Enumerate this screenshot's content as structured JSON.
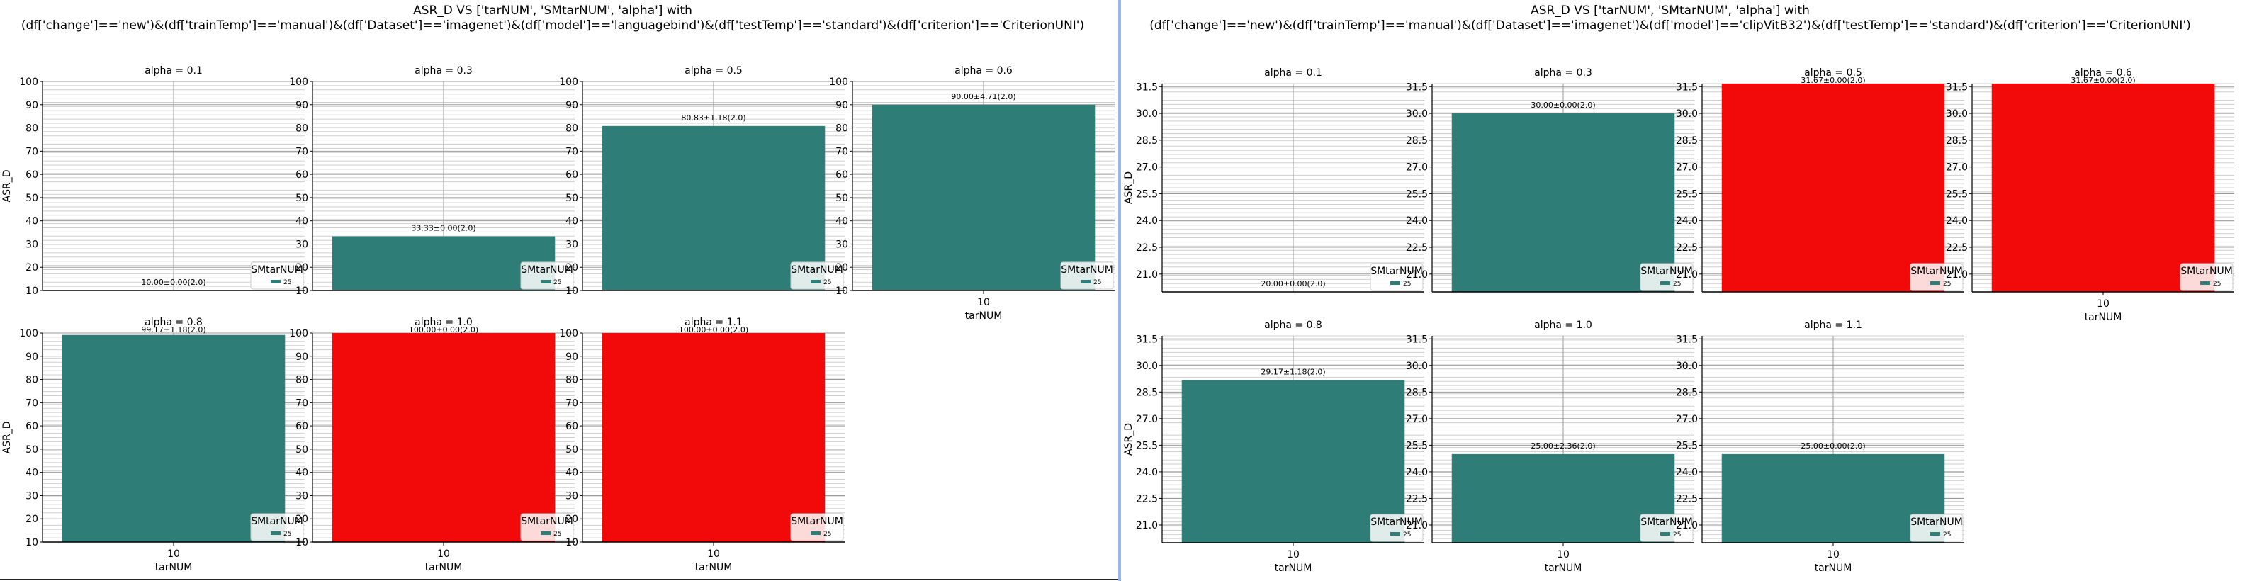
{
  "panels": [
    {
      "title_line1": "ASR_D VS ['tarNUM', 'SMtarNUM', 'alpha'] with",
      "title_line2": "(df['change']=='new')&(df['trainTemp']=='manual')&(df['Dataset']=='imagenet')&(df['model']=='languagebind')&(df['testTemp']=='standard')&(df['criterion']=='CriterionUNI')"
    },
    {
      "title_line1": "ASR_D VS ['tarNUM', 'SMtarNUM', 'alpha'] with",
      "title_line2": "(df['change']=='new')&(df['trainTemp']=='manual')&(df['Dataset']=='imagenet')&(df['model']=='clipVitB32')&(df['testTemp']=='standard')&(df['criterion']=='CriterionUNI')"
    }
  ],
  "colors": {
    "teal": "#2e7d76",
    "red": "#f20a0a"
  },
  "chart_data": [
    {
      "type": "bar",
      "ylabel": "ASR_D",
      "xlabel": "tarNUM",
      "x_category": "10",
      "legend_title": "SMtarNUM",
      "legend_entry": "25",
      "legend_position": "lower-right",
      "grid": true,
      "ylim": [
        10,
        100
      ],
      "yticks": [
        10,
        20,
        30,
        40,
        50,
        60,
        70,
        80,
        90,
        100
      ],
      "subplots": [
        {
          "title": "alpha = 0.1",
          "value": 10.0,
          "label": "10.00±0.00(2.0)",
          "color": "teal"
        },
        {
          "title": "alpha = 0.3",
          "value": 33.33,
          "label": "33.33±0.00(2.0)",
          "color": "teal"
        },
        {
          "title": "alpha = 0.5",
          "value": 80.83,
          "label": "80.83±1.18(2.0)",
          "color": "teal"
        },
        {
          "title": "alpha = 0.6",
          "value": 90.0,
          "label": "90.00±4.71(2.0)",
          "color": "teal"
        },
        {
          "title": "alpha = 0.8",
          "value": 99.17,
          "label": "99.17±1.18(2.0)",
          "color": "teal"
        },
        {
          "title": "alpha = 1.0",
          "value": 100.0,
          "label": "100.00±0.00(2.0)",
          "color": "red"
        },
        {
          "title": "alpha = 1.1",
          "value": 100.0,
          "label": "100.00±0.00(2.0)",
          "color": "red"
        }
      ]
    },
    {
      "type": "bar",
      "ylabel": "ASR_D",
      "xlabel": "tarNUM",
      "x_category": "10",
      "legend_title": "SMtarNUM",
      "legend_entry": "25",
      "legend_position": "lower-right",
      "grid": true,
      "ylim": [
        20,
        31.67
      ],
      "yticks": [
        21.0,
        22.5,
        24.0,
        25.5,
        27.0,
        28.5,
        30.0,
        31.5
      ],
      "ytick_labels": [
        "21.0",
        "22.5",
        "24.0",
        "25.5",
        "27.0",
        "28.5",
        "30.0",
        "31.5"
      ],
      "subplots": [
        {
          "title": "alpha = 0.1",
          "value": 20.0,
          "label": "20.00±0.00(2.0)",
          "color": "teal"
        },
        {
          "title": "alpha = 0.3",
          "value": 30.0,
          "label": "30.00±0.00(2.0)",
          "color": "teal"
        },
        {
          "title": "alpha = 0.5",
          "value": 31.67,
          "label": "31.67±0.00(2.0)",
          "color": "red"
        },
        {
          "title": "alpha = 0.6",
          "value": 31.67,
          "label": "31.67±0.00(2.0)",
          "color": "red"
        },
        {
          "title": "alpha = 0.8",
          "value": 29.17,
          "label": "29.17±1.18(2.0)",
          "color": "teal"
        },
        {
          "title": "alpha = 1.0",
          "value": 25.0,
          "label": "25.00±2.36(2.0)",
          "color": "teal"
        },
        {
          "title": "alpha = 1.1",
          "value": 25.0,
          "label": "25.00±0.00(2.0)",
          "color": "teal"
        }
      ]
    }
  ]
}
